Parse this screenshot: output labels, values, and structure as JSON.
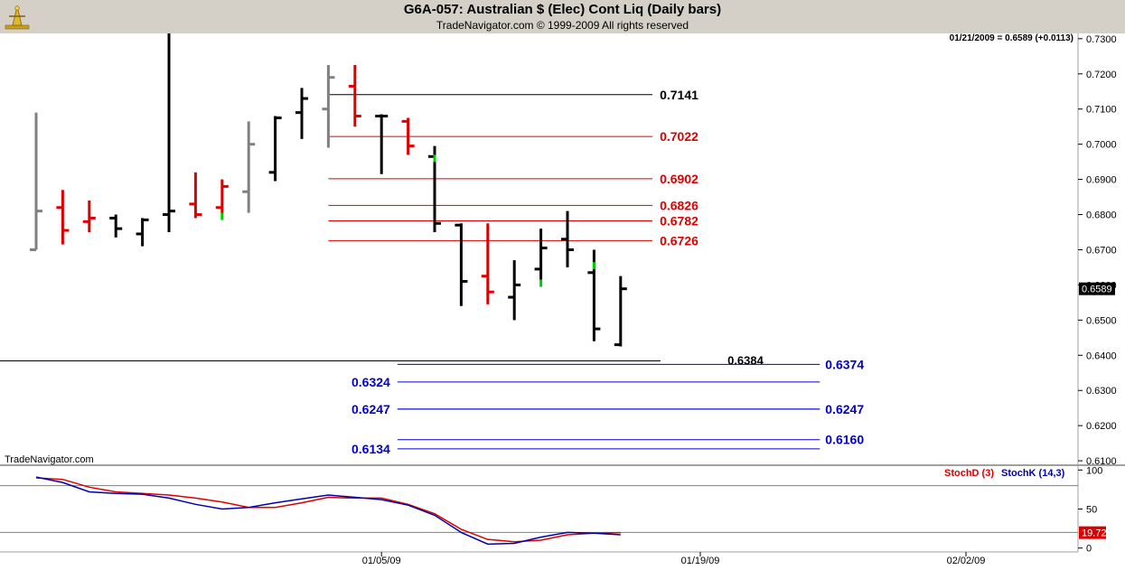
{
  "header": {
    "title": "G6A-057:  Australian $ (Elec) Cont Liq  (Daily bars)",
    "subtitle": "TradeNavigator.com © 1999-2009 All rights reserved"
  },
  "readout": "01/21/2009 = 0.6589 (+0.0113)",
  "watermark": "TradeNavigator.com",
  "colors": {
    "up": "#000000",
    "down": "#dd0000",
    "neutral": "#808080",
    "green": "#00cc00",
    "blue": "#0000cc",
    "stochD": "#dd0000",
    "stochK": "#0000aa"
  },
  "chart_data": [
    {
      "type": "ohlc",
      "title": "G6A-057:  Australian $ (Elec) Cont Liq  (Daily bars)",
      "ylim": [
        0.609,
        0.7315
      ],
      "y_ticks": [
        "0.7300",
        "0.7200",
        "0.7100",
        "0.7000",
        "0.6900",
        "0.6800",
        "0.6700",
        "0.6600",
        "0.6500",
        "0.6400",
        "0.6300",
        "0.6200",
        "0.6100"
      ],
      "x_tick_labels": [
        {
          "label": "01/05/09",
          "index": 13
        },
        {
          "label": "01/19/09",
          "index": 25
        },
        {
          "label": "02/02/09",
          "index": 35
        }
      ],
      "last_price_label": "0.6589",
      "last_price": 0.6589,
      "bars": [
        {
          "i": 0,
          "o": 0.67,
          "h": 0.709,
          "l": 0.67,
          "c": 0.681,
          "color": "neutral"
        },
        {
          "i": 1,
          "o": 0.682,
          "h": 0.687,
          "l": 0.6715,
          "c": 0.6755,
          "color": "down"
        },
        {
          "i": 2,
          "o": 0.678,
          "h": 0.684,
          "l": 0.675,
          "c": 0.679,
          "color": "down"
        },
        {
          "i": 3,
          "o": 0.679,
          "h": 0.68,
          "l": 0.6735,
          "c": 0.676,
          "color": "up"
        },
        {
          "i": 4,
          "o": 0.6745,
          "h": 0.679,
          "l": 0.671,
          "c": 0.6785,
          "color": "up"
        },
        {
          "i": 5,
          "o": 0.68,
          "h": 0.7315,
          "l": 0.675,
          "c": 0.681,
          "color": "up"
        },
        {
          "i": 6,
          "o": 0.683,
          "h": 0.692,
          "l": 0.679,
          "c": 0.68,
          "color": "down"
        },
        {
          "i": 7,
          "o": 0.682,
          "h": 0.69,
          "l": 0.68,
          "c": 0.688,
          "color": "down",
          "green_tip": 0.6805
        },
        {
          "i": 8,
          "o": 0.6865,
          "h": 0.7065,
          "l": 0.6805,
          "c": 0.7,
          "color": "neutral"
        },
        {
          "i": 9,
          "o": 0.692,
          "h": 0.708,
          "l": 0.6895,
          "c": 0.7075,
          "color": "up"
        },
        {
          "i": 10,
          "o": 0.709,
          "h": 0.716,
          "l": 0.7015,
          "c": 0.713,
          "color": "up"
        },
        {
          "i": 11,
          "o": 0.71,
          "h": 0.7225,
          "l": 0.699,
          "c": 0.719,
          "color": "neutral"
        },
        {
          "i": 12,
          "o": 0.7165,
          "h": 0.7225,
          "l": 0.705,
          "c": 0.708,
          "color": "down"
        },
        {
          "i": 13,
          "o": 0.708,
          "h": 0.7085,
          "l": 0.6915,
          "c": 0.708,
          "color": "up"
        },
        {
          "i": 14,
          "o": 0.7065,
          "h": 0.7075,
          "l": 0.697,
          "c": 0.6995,
          "color": "down"
        },
        {
          "i": 15,
          "o": 0.6965,
          "h": 0.6995,
          "l": 0.675,
          "c": 0.6775,
          "color": "up",
          "green_tip": 0.697
        },
        {
          "i": 16,
          "o": 0.677,
          "h": 0.6775,
          "l": 0.654,
          "c": 0.661,
          "color": "up"
        },
        {
          "i": 17,
          "o": 0.6625,
          "h": 0.6775,
          "l": 0.6545,
          "c": 0.658,
          "color": "down"
        },
        {
          "i": 18,
          "o": 0.6565,
          "h": 0.667,
          "l": 0.65,
          "c": 0.66,
          "color": "up"
        },
        {
          "i": 19,
          "o": 0.6645,
          "h": 0.676,
          "l": 0.6615,
          "c": 0.6705,
          "color": "up",
          "green_tip": 0.6615
        },
        {
          "i": 20,
          "o": 0.673,
          "h": 0.681,
          "l": 0.665,
          "c": 0.67,
          "color": "up"
        },
        {
          "i": 21,
          "o": 0.6635,
          "h": 0.67,
          "l": 0.644,
          "c": 0.6475,
          "color": "up",
          "green_tip": 0.6665
        },
        {
          "i": 22,
          "o": 0.643,
          "h": 0.6625,
          "l": 0.6425,
          "c": 0.6589,
          "color": "up"
        }
      ],
      "levels": [
        {
          "value": 0.7141,
          "label": "0.7141",
          "color": "#000000",
          "from": 11,
          "to": 23.2
        },
        {
          "value": 0.7022,
          "label": "0.7022",
          "color": "#dd0000",
          "from": 11,
          "to": 23.2
        },
        {
          "value": 0.6902,
          "label": "0.6902",
          "color": "#dd0000",
          "from": 11,
          "to": 23.2
        },
        {
          "value": 0.6826,
          "label": "0.6826",
          "color": "#dd0000",
          "from": 11,
          "to": 23.2
        },
        {
          "value": 0.6782,
          "label": "0.6782",
          "color": "#dd0000",
          "from": 11,
          "to": 23.2
        },
        {
          "value": 0.6726,
          "label": "0.6726",
          "color": "#dd0000",
          "from": 11,
          "to": 23.2
        }
      ],
      "support_line": {
        "value": 0.6384,
        "label": "0.6384",
        "color": "#000000"
      },
      "projections_right": [
        {
          "value": 0.6374,
          "label": "0.6374"
        },
        {
          "value": 0.6247,
          "label": "0.6247"
        },
        {
          "value": 0.616,
          "label": "0.6160"
        }
      ],
      "projections_left": [
        {
          "value": 0.6324,
          "label": "0.6324"
        },
        {
          "value": 0.6247,
          "label": "0.6247"
        },
        {
          "value": 0.6134,
          "label": "0.6134"
        }
      ]
    },
    {
      "type": "line",
      "legend": [
        {
          "name": "StochD (3)",
          "color": "#dd0000"
        },
        {
          "name": "StochK (14,3)",
          "color": "#0000aa"
        }
      ],
      "ylim": [
        -5,
        105
      ],
      "y_ticks": [
        "100",
        "50",
        "0"
      ],
      "overbought": 80,
      "oversold": 20,
      "last_value_label": "19.72",
      "last_value": 19.72,
      "series": [
        {
          "name": "StochD (3)",
          "points": [
            [
              0,
              90
            ],
            [
              1,
              88
            ],
            [
              2,
              78
            ],
            [
              3,
              72
            ],
            [
              4,
              70
            ],
            [
              5,
              68
            ],
            [
              6,
              64
            ],
            [
              7,
              59
            ],
            [
              8,
              52
            ],
            [
              9,
              52
            ],
            [
              10,
              58
            ],
            [
              11,
              65
            ],
            [
              12,
              64
            ],
            [
              13,
              64
            ],
            [
              14,
              56
            ],
            [
              15,
              44
            ],
            [
              16,
              24
            ],
            [
              17,
              11
            ],
            [
              18,
              8
            ],
            [
              19,
              10
            ],
            [
              20,
              17
            ],
            [
              21,
              19
            ],
            [
              22,
              19.72
            ]
          ]
        },
        {
          "name": "StochK (14,3)",
          "points": [
            [
              0,
              91
            ],
            [
              1,
              84
            ],
            [
              2,
              72
            ],
            [
              3,
              70
            ],
            [
              4,
              69
            ],
            [
              5,
              64
            ],
            [
              6,
              56
            ],
            [
              7,
              50
            ],
            [
              8,
              52
            ],
            [
              9,
              58
            ],
            [
              10,
              63
            ],
            [
              11,
              68
            ],
            [
              12,
              65
            ],
            [
              13,
              62
            ],
            [
              14,
              55
            ],
            [
              15,
              42
            ],
            [
              16,
              20
            ],
            [
              17,
              5
            ],
            [
              18,
              6
            ],
            [
              19,
              14
            ],
            [
              20,
              20
            ],
            [
              21,
              19
            ],
            [
              22,
              17
            ]
          ]
        }
      ]
    }
  ]
}
